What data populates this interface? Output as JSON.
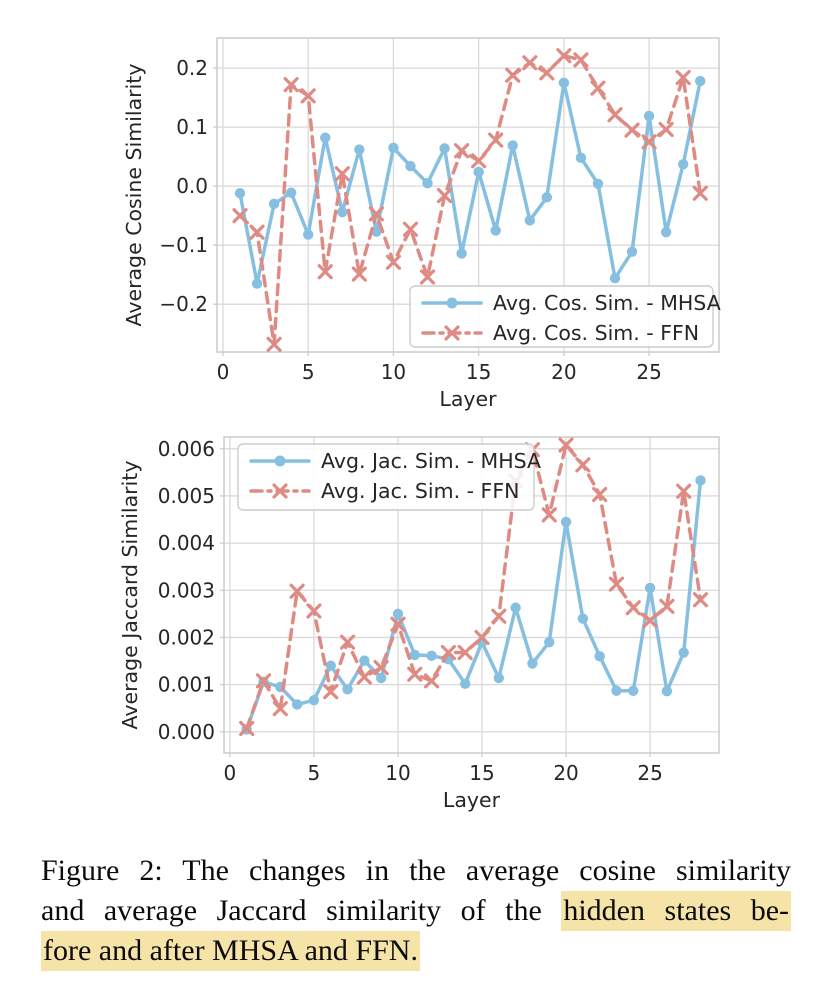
{
  "colors": {
    "mhsa": "#87bfe1",
    "ffn": "#de8b84",
    "grid": "#d9d9d9",
    "spine": "#cccccc",
    "tick_text": "#262626",
    "highlight": "#f5e3a7",
    "legend_border": "#cccccc",
    "background": "#ffffff"
  },
  "caption": {
    "line1": "Figure 2: The changes in the average cosine similarity",
    "line2_text": "and average Jaccard similarity of the",
    "line2_highlight": "hidden states be-",
    "line3_highlight": "fore and after MHSA and FFN."
  },
  "chart_data": [
    {
      "type": "line",
      "name": "cosine",
      "title": "",
      "xlabel": "Layer",
      "ylabel": "Average Cosine Similarity",
      "grid": true,
      "legend_position": "lower right",
      "xlim": [
        -0.35,
        29.1
      ],
      "ylim": [
        -0.281,
        0.251
      ],
      "x": [
        1,
        2,
        3,
        4,
        5,
        6,
        7,
        8,
        9,
        10,
        11,
        12,
        13,
        14,
        15,
        16,
        17,
        18,
        19,
        20,
        21,
        22,
        23,
        24,
        25,
        26,
        27,
        28
      ],
      "xticks": [
        {
          "v": 0,
          "label": "0"
        },
        {
          "v": 5,
          "label": "5"
        },
        {
          "v": 10,
          "label": "10"
        },
        {
          "v": 15,
          "label": "15"
        },
        {
          "v": 20,
          "label": "20"
        },
        {
          "v": 25,
          "label": "25"
        }
      ],
      "yticks": [
        {
          "v": 0.2,
          "label": "0.2"
        },
        {
          "v": 0.1,
          "label": "0.1"
        },
        {
          "v": 0.0,
          "label": "0.0"
        },
        {
          "v": -0.1,
          "label": "−0.1"
        },
        {
          "v": -0.2,
          "label": "−0.2"
        }
      ],
      "series": [
        {
          "name": "Avg. Cos. Sim. - MHSA",
          "color_key": "mhsa",
          "line": "solid",
          "marker": "circle",
          "values": [
            -0.012,
            -0.165,
            -0.03,
            -0.011,
            -0.082,
            0.082,
            -0.044,
            0.062,
            -0.077,
            0.065,
            0.034,
            0.005,
            0.064,
            -0.114,
            0.024,
            -0.075,
            0.069,
            -0.058,
            -0.019,
            0.175,
            0.048,
            0.004,
            -0.156,
            -0.111,
            0.119,
            -0.078,
            0.037,
            0.178
          ]
        },
        {
          "name": "Avg. Cos. Sim. - FFN",
          "color_key": "ffn",
          "line": "dashed",
          "marker": "x",
          "values": [
            -0.05,
            -0.078,
            -0.268,
            0.172,
            0.153,
            -0.145,
            0.021,
            -0.149,
            -0.047,
            -0.129,
            -0.073,
            -0.154,
            -0.016,
            0.06,
            0.043,
            0.078,
            0.188,
            0.209,
            0.192,
            0.221,
            0.214,
            0.166,
            0.121,
            0.095,
            0.075,
            0.096,
            0.184,
            -0.012
          ]
        }
      ]
    },
    {
      "type": "line",
      "name": "jaccard",
      "title": "",
      "xlabel": "Layer",
      "ylabel": "Average Jaccard Similarity",
      "grid": true,
      "legend_position": "upper left",
      "xlim": [
        -0.35,
        29.1
      ],
      "ylim": [
        -0.00045,
        0.00625
      ],
      "x": [
        1,
        2,
        3,
        4,
        5,
        6,
        7,
        8,
        9,
        10,
        11,
        12,
        13,
        14,
        15,
        16,
        17,
        18,
        19,
        20,
        21,
        22,
        23,
        24,
        25,
        26,
        27,
        28
      ],
      "xticks": [
        {
          "v": 0,
          "label": "0"
        },
        {
          "v": 5,
          "label": "5"
        },
        {
          "v": 10,
          "label": "10"
        },
        {
          "v": 15,
          "label": "15"
        },
        {
          "v": 20,
          "label": "20"
        },
        {
          "v": 25,
          "label": "25"
        }
      ],
      "yticks": [
        {
          "v": 0.006,
          "label": "0.006"
        },
        {
          "v": 0.005,
          "label": "0.005"
        },
        {
          "v": 0.004,
          "label": "0.004"
        },
        {
          "v": 0.003,
          "label": "0.003"
        },
        {
          "v": 0.002,
          "label": "0.002"
        },
        {
          "v": 0.001,
          "label": "0.001"
        },
        {
          "v": 0.0,
          "label": "0.000"
        }
      ],
      "series": [
        {
          "name": "Avg. Jac. Sim. - MHSA",
          "color_key": "mhsa",
          "line": "solid",
          "marker": "circle",
          "values": [
            5e-05,
            0.00106,
            0.00095,
            0.00058,
            0.00067,
            0.0014,
            0.0009,
            0.00151,
            0.00114,
            0.0025,
            0.00163,
            0.00161,
            0.00154,
            0.00102,
            0.0019,
            0.00114,
            0.00263,
            0.00145,
            0.0019,
            0.00445,
            0.0024,
            0.0016,
            0.00087,
            0.00087,
            0.00305,
            0.00086,
            0.00168,
            0.00533
          ]
        },
        {
          "name": "Avg. Jac. Sim. - FFN",
          "color_key": "ffn",
          "line": "dashed",
          "marker": "x",
          "values": [
            7e-05,
            0.00108,
            0.00049,
            0.00298,
            0.00256,
            0.00085,
            0.0019,
            0.00116,
            0.00136,
            0.00228,
            0.00122,
            0.00108,
            0.00168,
            0.00168,
            0.002,
            0.00245,
            0.00532,
            0.00598,
            0.0046,
            0.00608,
            0.00566,
            0.00503,
            0.00313,
            0.00263,
            0.00236,
            0.00266,
            0.0051,
            0.0028
          ]
        }
      ]
    }
  ]
}
